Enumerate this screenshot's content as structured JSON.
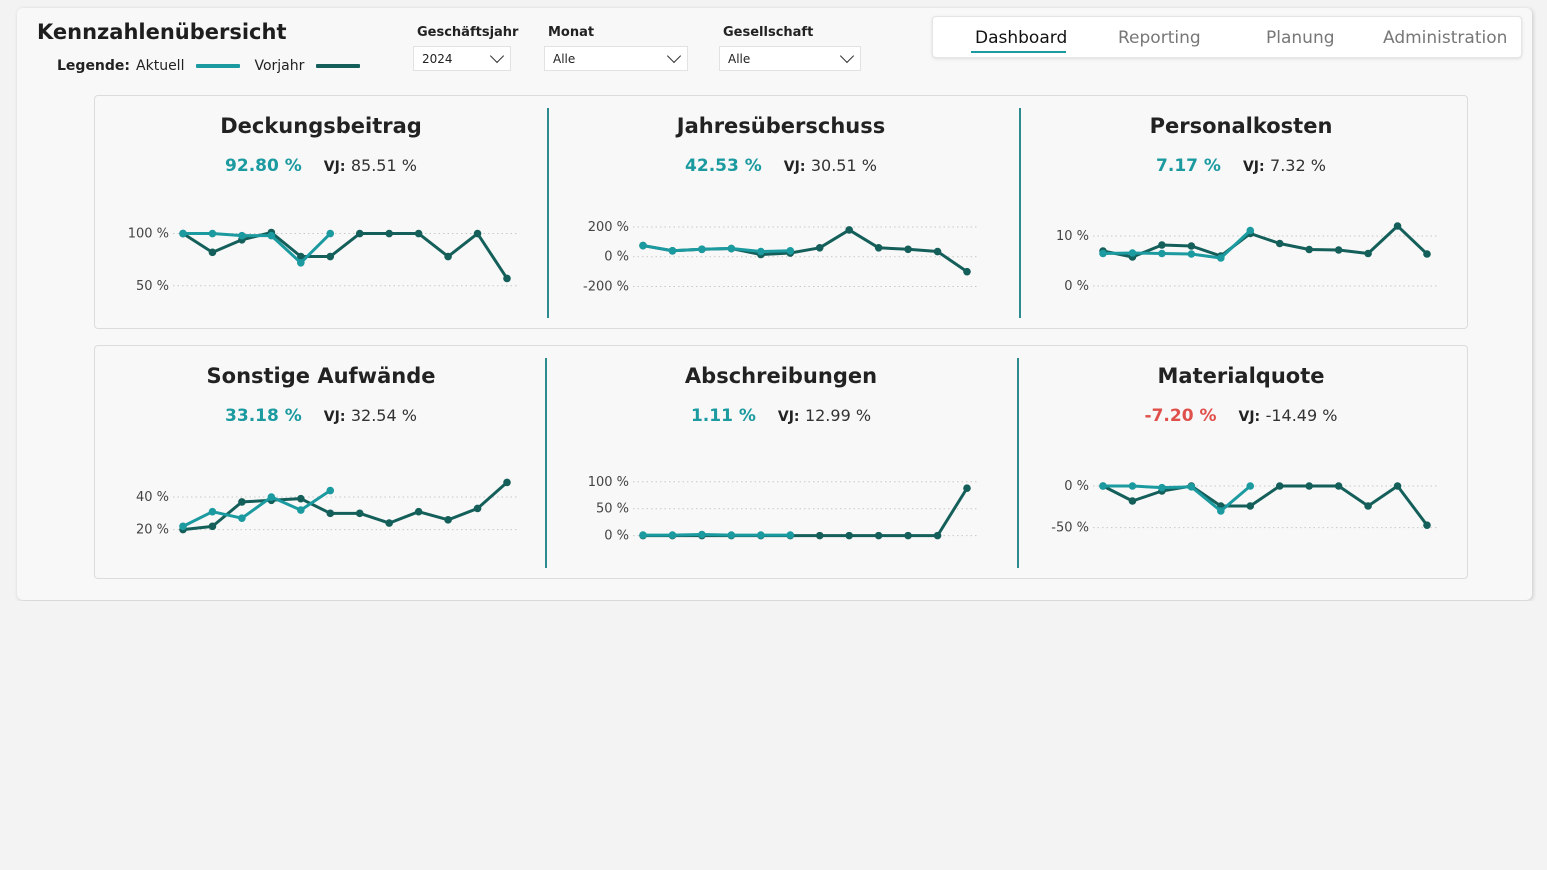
{
  "header": {
    "title": "Kennzahlenübersicht",
    "legend_label": "Legende:",
    "legend_current": "Aktuell",
    "legend_previous": "Vorjahr"
  },
  "colors": {
    "current": "#1b9aa0",
    "previous": "#145f5a",
    "negative": "#e0504b"
  },
  "filters": {
    "year": {
      "label": "Geschäftsjahr",
      "value": "2024"
    },
    "month": {
      "label": "Monat",
      "value": "Alle"
    },
    "company": {
      "label": "Gesellschaft",
      "value": "Alle"
    }
  },
  "nav": {
    "tabs": [
      "Dashboard",
      "Reporting",
      "Planung",
      "Administration"
    ],
    "active": "Dashboard"
  },
  "vj_label": "VJ:",
  "chart_data": [
    {
      "type": "line",
      "title": "Deckungsbeitrag",
      "current_kpi": "92.80 %",
      "previous_kpi": "85.51 %",
      "ticks": [
        {
          "v": 100,
          "label": "100 %"
        },
        {
          "v": 50,
          "label": "50 %"
        }
      ],
      "ylim": [
        45,
        112
      ],
      "series": [
        {
          "name": "Aktuell",
          "values": [
            100,
            100,
            98,
            98,
            72,
            100
          ]
        },
        {
          "name": "Vorjahr",
          "values": [
            100,
            82,
            94,
            101,
            78,
            78,
            100,
            100,
            100,
            78,
            100,
            57
          ]
        }
      ]
    },
    {
      "type": "line",
      "title": "Jahresüberschuss",
      "current_kpi": "42.53 %",
      "previous_kpi": "30.51 %",
      "ticks": [
        {
          "v": 200,
          "label": "200 %"
        },
        {
          "v": 0,
          "label": "0 %"
        },
        {
          "v": -200,
          "label": "-200 %"
        }
      ],
      "ylim": [
        -230,
        240
      ],
      "series": [
        {
          "name": "Aktuell",
          "values": [
            75,
            40,
            50,
            55,
            35,
            40
          ]
        },
        {
          "name": "Vorjahr",
          "values": [
            75,
            40,
            50,
            55,
            15,
            25,
            60,
            180,
            60,
            50,
            35,
            -100
          ]
        }
      ]
    },
    {
      "type": "line",
      "title": "Personalkosten",
      "current_kpi": "7.17 %",
      "previous_kpi": "7.32 %",
      "ticks": [
        {
          "v": 10,
          "label": "10 %"
        },
        {
          "v": 0,
          "label": "0 %"
        }
      ],
      "ylim": [
        -1,
        13
      ],
      "series": [
        {
          "name": "Aktuell",
          "values": [
            6.5,
            6.6,
            6.5,
            6.4,
            5.6,
            11.1
          ]
        },
        {
          "name": "Vorjahr",
          "values": [
            7,
            5.8,
            8.2,
            8,
            6,
            10.5,
            8.5,
            7.3,
            7.2,
            6.5,
            12,
            6.4
          ]
        }
      ]
    },
    {
      "type": "line",
      "title": "Sonstige Aufwände",
      "current_kpi": "33.18 %",
      "previous_kpi": "32.54 %",
      "ticks": [
        {
          "v": 40,
          "label": "40 %"
        },
        {
          "v": 20,
          "label": "20 %"
        }
      ],
      "ylim": [
        13,
        56
      ],
      "series": [
        {
          "name": "Aktuell",
          "values": [
            22,
            31,
            27,
            40,
            32,
            44
          ]
        },
        {
          "name": "Vorjahr",
          "values": [
            20,
            22,
            37,
            38,
            39,
            30,
            30,
            24,
            31,
            26,
            33,
            49
          ]
        }
      ]
    },
    {
      "type": "line",
      "title": "Abschreibungen",
      "current_kpi": "1.11 %",
      "previous_kpi": "12.99 %",
      "ticks": [
        {
          "v": 100,
          "label": "100 %"
        },
        {
          "v": 50,
          "label": "50 %"
        },
        {
          "v": 0,
          "label": "0 %"
        }
      ],
      "ylim": [
        -10,
        120
      ],
      "series": [
        {
          "name": "Aktuell",
          "values": [
            1,
            1,
            2,
            1,
            1,
            1
          ]
        },
        {
          "name": "Vorjahr",
          "values": [
            0,
            0,
            0,
            0,
            0,
            0,
            0,
            0,
            0,
            0,
            0,
            88
          ]
        }
      ]
    },
    {
      "type": "line",
      "title": "Materialquote",
      "current_kpi": "-7.20 %",
      "previous_kpi": "-14.49 %",
      "current_negative": true,
      "ticks": [
        {
          "v": 0,
          "label": "0 %"
        },
        {
          "v": -50,
          "label": "-50 %"
        }
      ],
      "ylim": [
        -66,
        18
      ],
      "series": [
        {
          "name": "Aktuell",
          "values": [
            0,
            0,
            -2,
            -1,
            -30,
            0
          ]
        },
        {
          "name": "Vorjahr",
          "values": [
            0,
            -18,
            -6,
            0,
            -24,
            -24,
            0,
            0,
            0,
            -24,
            0,
            -47
          ]
        }
      ]
    }
  ]
}
